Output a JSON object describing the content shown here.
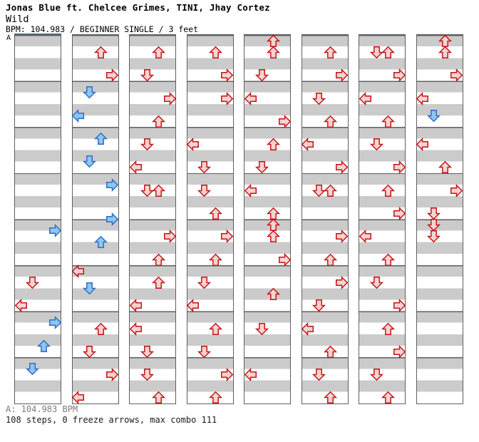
{
  "header": {
    "artist": "Jonas Blue ft. Chelcee Grimes, TINI, Jhay Cortez",
    "song_title": "Wild",
    "info_line": "BPM: 104.983 / BEGINNER SINGLE / 3 feet"
  },
  "segment_marker": {
    "label": "A"
  },
  "footer": {
    "bpm_line": "A: 104.983 BPM",
    "summary": "108 steps, 0 freeze arrows, max combo 111"
  },
  "colors": {
    "quarter_note_fill": "#f8d3d3",
    "quarter_note_stroke": "#c31515",
    "eighth_note_fill": "#8ec6f2",
    "eighth_note_stroke": "#2e6ec4",
    "band_gray": "#cbcbcb",
    "band_white": "#ffffff",
    "column_border": "#5f5f5f",
    "segment_line_blue": "#3273cc"
  },
  "chart_data": {
    "type": "ddr-step-chart",
    "columns": 8,
    "measures_per_column": 8,
    "rows_per_measure": 4,
    "lanes": [
      "L",
      "D",
      "U",
      "R"
    ],
    "note_format": [
      "column_1_to_8",
      "row_0_to_31_halves_are_8th_notes",
      "direction"
    ],
    "color_rule": "integer row = red quarter note, fractional row = blue 8th note",
    "notes": [
      [
        1,
        16.5,
        "R"
      ],
      [
        1,
        21,
        "D"
      ],
      [
        1,
        23,
        "L"
      ],
      [
        1,
        24.5,
        "R"
      ],
      [
        1,
        26.5,
        "U"
      ],
      [
        1,
        28.5,
        "D"
      ],
      [
        2,
        1,
        "U"
      ],
      [
        2,
        3,
        "R"
      ],
      [
        2,
        4.5,
        "D"
      ],
      [
        2,
        6.5,
        "L"
      ],
      [
        2,
        8.5,
        "U"
      ],
      [
        2,
        10.5,
        "D"
      ],
      [
        2,
        12.5,
        "R"
      ],
      [
        2,
        15.5,
        "R"
      ],
      [
        2,
        17.5,
        "U"
      ],
      [
        2,
        20,
        "L"
      ],
      [
        2,
        21.5,
        "D"
      ],
      [
        2,
        25,
        "U"
      ],
      [
        2,
        27,
        "D"
      ],
      [
        2,
        29,
        "R"
      ],
      [
        2,
        31,
        "L"
      ],
      [
        3,
        1,
        "U"
      ],
      [
        3,
        3,
        "D"
      ],
      [
        3,
        5,
        "R"
      ],
      [
        3,
        7,
        "U"
      ],
      [
        3,
        9,
        "D"
      ],
      [
        3,
        11,
        "L"
      ],
      [
        3,
        13,
        "D"
      ],
      [
        3,
        13,
        "U"
      ],
      [
        3,
        17,
        "R"
      ],
      [
        3,
        19,
        "U"
      ],
      [
        3,
        21,
        "U"
      ],
      [
        3,
        23,
        "L"
      ],
      [
        3,
        25,
        "L"
      ],
      [
        3,
        27,
        "D"
      ],
      [
        3,
        29,
        "D"
      ],
      [
        3,
        31,
        "U"
      ],
      [
        4,
        1,
        "U"
      ],
      [
        4,
        3,
        "R"
      ],
      [
        4,
        5,
        "R"
      ],
      [
        4,
        9,
        "L"
      ],
      [
        4,
        11,
        "D"
      ],
      [
        4,
        13,
        "D"
      ],
      [
        4,
        15,
        "U"
      ],
      [
        4,
        17,
        "R"
      ],
      [
        4,
        19,
        "U"
      ],
      [
        4,
        21,
        "D"
      ],
      [
        4,
        23,
        "L"
      ],
      [
        4,
        25,
        "U"
      ],
      [
        4,
        27,
        "D"
      ],
      [
        4,
        29,
        "R"
      ],
      [
        4,
        31,
        "U"
      ],
      [
        5,
        0,
        "U"
      ],
      [
        5,
        1,
        "U"
      ],
      [
        5,
        3,
        "D"
      ],
      [
        5,
        5,
        "L"
      ],
      [
        5,
        7,
        "R"
      ],
      [
        5,
        9,
        "U"
      ],
      [
        5,
        11,
        "D"
      ],
      [
        5,
        13,
        "L"
      ],
      [
        5,
        15,
        "U"
      ],
      [
        5,
        16,
        "U"
      ],
      [
        5,
        17,
        "U"
      ],
      [
        5,
        19,
        "R"
      ],
      [
        5,
        22,
        "U"
      ],
      [
        5,
        25,
        "D"
      ],
      [
        5,
        29,
        "L"
      ],
      [
        6,
        1,
        "U"
      ],
      [
        6,
        3,
        "R"
      ],
      [
        6,
        5,
        "D"
      ],
      [
        6,
        7,
        "U"
      ],
      [
        6,
        9,
        "L"
      ],
      [
        6,
        11,
        "R"
      ],
      [
        6,
        13,
        "D"
      ],
      [
        6,
        13,
        "U"
      ],
      [
        6,
        17,
        "R"
      ],
      [
        6,
        19,
        "U"
      ],
      [
        6,
        21,
        "R"
      ],
      [
        6,
        23,
        "D"
      ],
      [
        6,
        25,
        "L"
      ],
      [
        6,
        27,
        "U"
      ],
      [
        6,
        29,
        "D"
      ],
      [
        6,
        31,
        "U"
      ],
      [
        7,
        1,
        "D"
      ],
      [
        7,
        1,
        "U"
      ],
      [
        7,
        3,
        "R"
      ],
      [
        7,
        5,
        "L"
      ],
      [
        7,
        7,
        "U"
      ],
      [
        7,
        9,
        "D"
      ],
      [
        7,
        11,
        "R"
      ],
      [
        7,
        13,
        "U"
      ],
      [
        7,
        15,
        "R"
      ],
      [
        7,
        17,
        "L"
      ],
      [
        7,
        19,
        "U"
      ],
      [
        7,
        21,
        "D"
      ],
      [
        7,
        23,
        "R"
      ],
      [
        7,
        25,
        "U"
      ],
      [
        7,
        27,
        "R"
      ],
      [
        7,
        29,
        "D"
      ],
      [
        7,
        31,
        "U"
      ],
      [
        8,
        0,
        "U"
      ],
      [
        8,
        1,
        "U"
      ],
      [
        8,
        3,
        "R"
      ],
      [
        8,
        5,
        "L"
      ],
      [
        8,
        6.5,
        "D"
      ],
      [
        8,
        9,
        "L"
      ],
      [
        8,
        11,
        "U"
      ],
      [
        8,
        13,
        "R"
      ],
      [
        8,
        15,
        "D"
      ],
      [
        8,
        16,
        "D"
      ],
      [
        8,
        17,
        "D"
      ]
    ]
  }
}
